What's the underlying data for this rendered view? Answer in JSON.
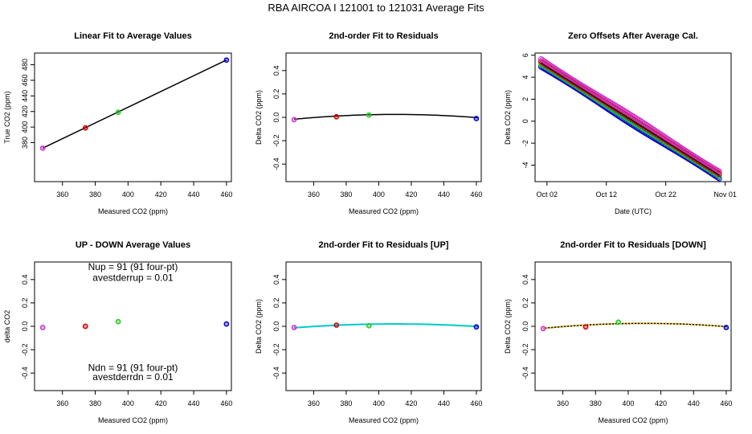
{
  "page_title": "RBA   AIRCOA I   121001 to 121031   Average Fits",
  "colors": {
    "axis": "#000000",
    "purple": "#cc33cc",
    "red": "#cc0000",
    "green": "#22cc22",
    "blue": "#0000cc",
    "fit_line": "#000000",
    "cyan": "#00cccc",
    "yellow": "#e6c000",
    "orange": "#ff8800"
  },
  "chart_data": [
    {
      "id": "p1",
      "type": "scatter",
      "title": "Linear Fit to Average Values",
      "xlabel": "Measured CO2 (ppm)",
      "ylabel": "True CO2 (ppm)",
      "xlim": [
        343,
        463
      ],
      "ylim": [
        330,
        495
      ],
      "xticks": [
        360,
        380,
        400,
        420,
        440,
        460
      ],
      "yticks": [
        380,
        400,
        420,
        440,
        460,
        480
      ],
      "points": [
        {
          "x": 348,
          "y": 373,
          "color": "#cc33cc"
        },
        {
          "x": 374,
          "y": 399,
          "color": "#cc0000"
        },
        {
          "x": 394,
          "y": 419,
          "color": "#22cc22"
        },
        {
          "x": 460,
          "y": 486,
          "color": "#0000cc"
        }
      ],
      "fit": [
        [
          348,
          373
        ],
        [
          460,
          486
        ]
      ]
    },
    {
      "id": "p2",
      "type": "scatter",
      "title": "2nd-order Fit to Residuals",
      "xlabel": "Measured CO2 (ppm)",
      "ylabel": "Delta CO2 (ppm)",
      "xlim": [
        343,
        463
      ],
      "ylim": [
        -0.55,
        0.55
      ],
      "xticks": [
        360,
        380,
        400,
        420,
        440,
        460
      ],
      "yticks": [
        -0.4,
        -0.2,
        0.0,
        0.2,
        0.4
      ],
      "ytick_labels": [
        "-0.4",
        "-0.2",
        "0.0",
        "0.2",
        "0.4"
      ],
      "points": [
        {
          "x": 348,
          "y": -0.02,
          "color": "#cc33cc"
        },
        {
          "x": 374,
          "y": 0.005,
          "color": "#cc0000"
        },
        {
          "x": 394,
          "y": 0.02,
          "color": "#22cc22"
        },
        {
          "x": 460,
          "y": -0.01,
          "color": "#0000cc"
        }
      ],
      "curve": {
        "peak_x": 410,
        "peak_y": 0.025,
        "a": -1.08e-05,
        "color": "#000000"
      }
    },
    {
      "id": "p3",
      "type": "scatter",
      "title": "Zero Offsets After Average Cal.",
      "xlabel": "Date (UTC)",
      "ylabel": "Delta CO2 (ppm)",
      "xlim": [
        0,
        33
      ],
      "ylim": [
        -5.5,
        6.2
      ],
      "xticks": [
        2,
        12,
        22,
        32
      ],
      "xtick_labels": [
        "Oct 02",
        "Oct 12",
        "Oct 22",
        "Nov 01"
      ],
      "yticks": [
        -4,
        -2,
        0,
        2,
        4,
        6
      ],
      "band": {
        "x_start": 1,
        "x_end": 31,
        "y_start": 5.3,
        "y_end": -4.9,
        "spread": 0.35,
        "colors": [
          "#0000cc",
          "#22cc22",
          "#cc0000",
          "#cc33cc"
        ]
      }
    },
    {
      "id": "p4",
      "type": "scatter",
      "title": "UP - DOWN Average Values",
      "xlabel": "Measured CO2 (ppm)",
      "ylabel": "delta CO2",
      "xlim": [
        343,
        463
      ],
      "ylim": [
        -0.55,
        0.55
      ],
      "xticks": [
        360,
        380,
        400,
        420,
        440,
        460
      ],
      "yticks": [
        -0.4,
        -0.2,
        0.0,
        0.2,
        0.4
      ],
      "ytick_labels": [
        "-0.4",
        "-0.2",
        "0.0",
        "0.2",
        "0.4"
      ],
      "points": [
        {
          "x": 348,
          "y": -0.01,
          "color": "#cc33cc"
        },
        {
          "x": 374,
          "y": 0.0,
          "color": "#cc0000"
        },
        {
          "x": 394,
          "y": 0.04,
          "color": "#22cc22"
        },
        {
          "x": 460,
          "y": 0.02,
          "color": "#0000cc"
        }
      ],
      "annotations": [
        {
          "text": "Nup = 91 (91 four-pt)",
          "x": 403,
          "y": 0.48
        },
        {
          "text": "avestderrup =  0.01",
          "x": 403,
          "y": 0.39
        },
        {
          "text": "Ndn = 91 (91 four-pt)",
          "x": 403,
          "y": -0.38
        },
        {
          "text": "avestderrdn =  0.01",
          "x": 403,
          "y": -0.46
        }
      ]
    },
    {
      "id": "p5",
      "type": "scatter",
      "title": "2nd-order Fit to Residuals [UP]",
      "xlabel": "Measured CO2 (ppm)",
      "ylabel": "Delta CO2 (ppm)",
      "xlim": [
        343,
        463
      ],
      "ylim": [
        -0.55,
        0.55
      ],
      "xticks": [
        360,
        380,
        400,
        420,
        440,
        460
      ],
      "yticks": [
        -0.4,
        -0.2,
        0.0,
        0.2,
        0.4
      ],
      "ytick_labels": [
        "-0.4",
        "-0.2",
        "0.0",
        "0.2",
        "0.4"
      ],
      "points": [
        {
          "x": 348,
          "y": -0.01,
          "color": "#cc33cc"
        },
        {
          "x": 374,
          "y": 0.01,
          "color": "#cc0000"
        },
        {
          "x": 394,
          "y": 0.005,
          "color": "#22cc22"
        },
        {
          "x": 460,
          "y": -0.005,
          "color": "#0000cc"
        }
      ],
      "curve": {
        "peak_x": 410,
        "peak_y": 0.02,
        "a": -8.5e-06,
        "color": "#00cccc"
      }
    },
    {
      "id": "p6",
      "type": "scatter",
      "title": "2nd-order Fit to Residuals [DOWN]",
      "xlabel": "Measured CO2 (ppm)",
      "ylabel": "Delta CO2 (ppm)",
      "xlim": [
        343,
        463
      ],
      "ylim": [
        -0.55,
        0.55
      ],
      "xticks": [
        360,
        380,
        400,
        420,
        440,
        460
      ],
      "yticks": [
        -0.4,
        -0.2,
        0.0,
        0.2,
        0.4
      ],
      "ytick_labels": [
        "-0.4",
        "-0.2",
        "0.0",
        "0.2",
        "0.4"
      ],
      "points": [
        {
          "x": 348,
          "y": -0.02,
          "color": "#cc33cc"
        },
        {
          "x": 374,
          "y": -0.005,
          "color": "#cc0000"
        },
        {
          "x": 394,
          "y": 0.035,
          "color": "#22cc22"
        },
        {
          "x": 460,
          "y": -0.01,
          "color": "#0000cc"
        }
      ],
      "curve": {
        "peak_x": 410,
        "peak_y": 0.025,
        "a": -1.1e-05,
        "color": "#e6c000"
      }
    }
  ]
}
